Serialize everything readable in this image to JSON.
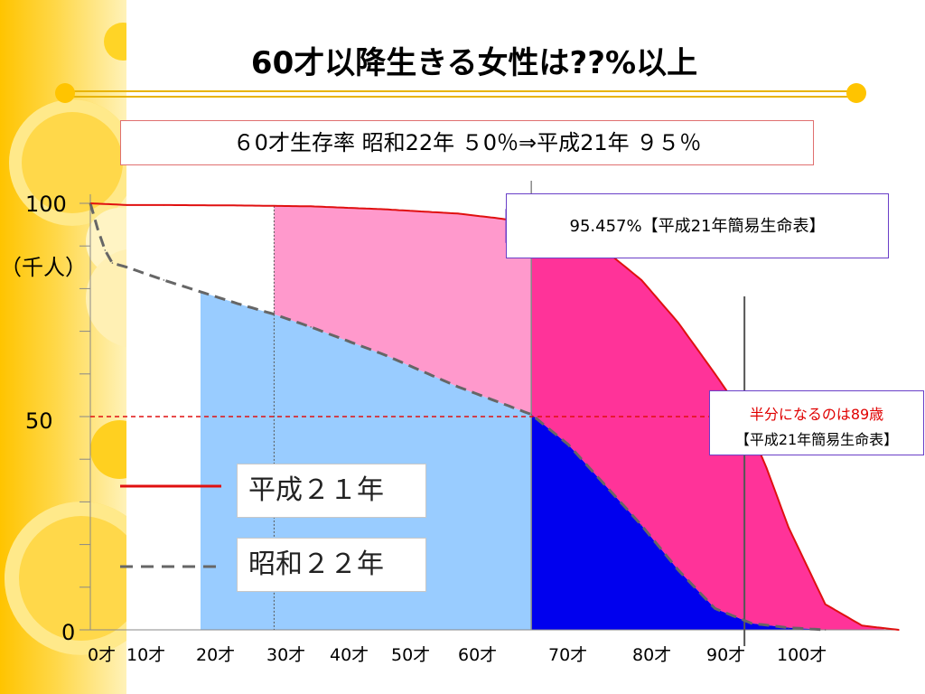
{
  "title": "60才以降生きる女性は??%以上",
  "subtitle": "６0才生存率  昭和22年  ５0％⇒平成21年  ９５％",
  "callouts": {
    "survival_60": "95.457%【平成21年簡易生命表】",
    "half_line_1": "半分になるのは89歳",
    "half_line_2": "【平成21年簡易生命表】"
  },
  "legend": {
    "heisei": "平成２１年",
    "showa": "昭和２２年"
  },
  "colors": {
    "heisei_line": "#e01010",
    "showa_line": "#666666",
    "light_blue": "#99ccff",
    "pink_light": "#ff99cc",
    "pink_dark": "#ff3399",
    "blue_dark": "#0000ee",
    "half_line": "#e01010"
  },
  "chart_data": {
    "type": "area",
    "ylabel": "（千人）",
    "yticks": [
      "0",
      "50",
      "100"
    ],
    "ylim": [
      0,
      100
    ],
    "xlim": [
      0,
      110
    ],
    "xticks": [
      "0才",
      "10才",
      "20才",
      "30才",
      "40才",
      "50才",
      "60才",
      "70才",
      "80才",
      "90才",
      "100才"
    ],
    "reference_line_y": 50,
    "marker_ages": [
      60,
      89
    ],
    "series": [
      {
        "name": "平成２１年",
        "style": "solid",
        "x": [
          0,
          5,
          10,
          20,
          30,
          40,
          50,
          55,
          58,
          60,
          65,
          70,
          75,
          80,
          85,
          89,
          92,
          95,
          100,
          105,
          110
        ],
        "y": [
          100,
          99.6,
          99.6,
          99.5,
          99.3,
          98.6,
          97.6,
          96.6,
          95.9,
          95.5,
          93,
          89,
          82,
          72,
          60,
          50,
          38,
          24,
          6,
          1,
          0
        ]
      },
      {
        "name": "昭和２２年",
        "style": "dashed",
        "x": [
          0,
          1,
          2,
          3,
          5,
          10,
          20,
          25,
          30,
          40,
          50,
          60,
          65,
          70,
          75,
          80,
          85,
          90,
          95,
          100
        ],
        "y": [
          100,
          94,
          89,
          86,
          85,
          82,
          76.5,
          74,
          71,
          64.5,
          57,
          50.5,
          43.5,
          34,
          24.5,
          14,
          5,
          1.5,
          0.5,
          0
        ]
      }
    ]
  }
}
